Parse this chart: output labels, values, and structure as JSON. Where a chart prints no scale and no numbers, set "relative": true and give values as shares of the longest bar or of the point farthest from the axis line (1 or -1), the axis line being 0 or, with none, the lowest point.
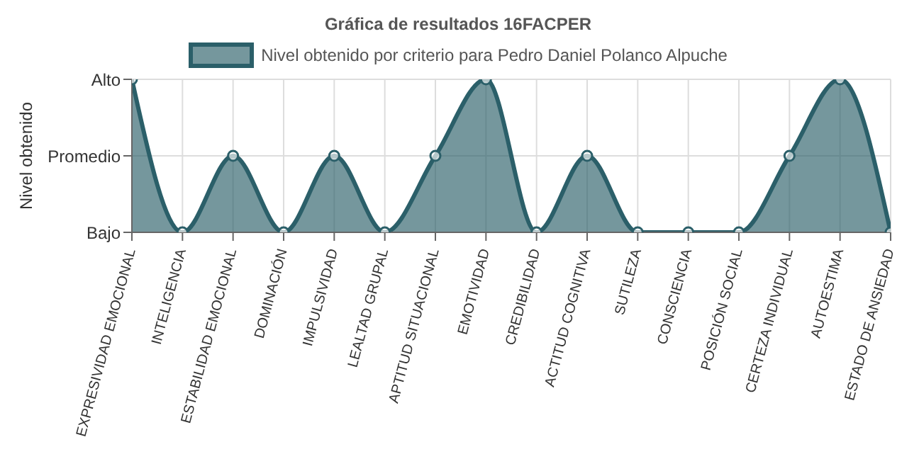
{
  "chart_data": {
    "type": "area",
    "title": "Gráfica de resultados 16FACPER",
    "ylabel": "Nivel obtenido",
    "categories": [
      "EXPRESIVIDAD EMOCIONAL",
      "INTELIGENCIA",
      "ESTABILIDAD EMOCIONAL",
      "DOMINACIÓN",
      "IMPULSIVIDAD",
      "LEALTAD GRUPAL",
      "APTITUD SITUACIONAL",
      "EMOTIVIDAD",
      "CREDIBILIDAD",
      "ACTITUD COGNITIVA",
      "SUTILEZA",
      "CONSCIENCIA",
      "POSICIÓN SOCIAL",
      "CERTEZA INDIVIDUAL",
      "AUTOESTIMA",
      "ESTADO DE ANSIEDAD"
    ],
    "series": [
      {
        "name": "Nivel obtenido por criterio para Pedro Daniel Polanco Alpuche",
        "color": "#2b5f69",
        "values": [
          1,
          0,
          0.5,
          0,
          0.5,
          0,
          0.5,
          1,
          0,
          0.5,
          0,
          0,
          0,
          0.5,
          1,
          0
        ]
      }
    ],
    "relative": true,
    "annotations": [
      "Alto",
      "Promedio",
      "Bajo"
    ],
    "grid": true,
    "legend": "top",
    "marker": "circle"
  }
}
